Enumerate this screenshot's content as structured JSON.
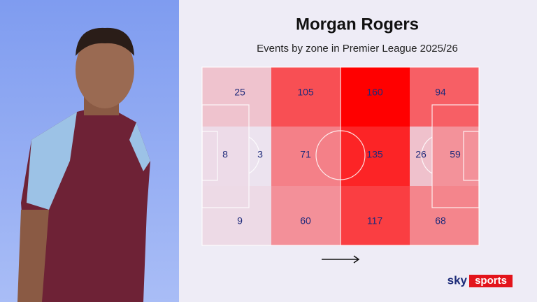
{
  "chart_data": {
    "type": "heatmap",
    "title": "Morgan Rogers",
    "subtitle": "Events by zone in Premier League 2025/26",
    "rows": [
      [
        25,
        105,
        160,
        94
      ],
      [
        8,
        3,
        71,
        135,
        26,
        59
      ],
      [
        9,
        60,
        117,
        68
      ]
    ],
    "colorscale": [
      "#ece7f4",
      "#ff0000"
    ],
    "logo": {
      "sky": "sky",
      "sports": "sports"
    }
  }
}
